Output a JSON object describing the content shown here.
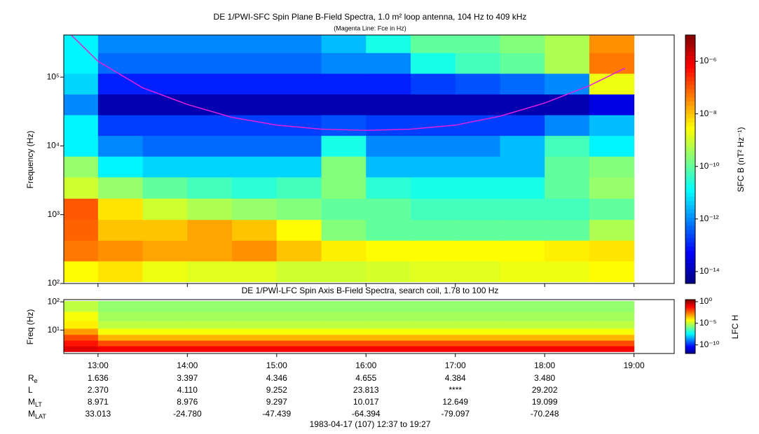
{
  "chart_data": [
    {
      "type": "heatmap",
      "title": "DE 1/PWI-SFC  Spin Plane B-Field Spectra, 1.0 m² loop antenna, 104 Hz to 409 kHz",
      "subtitle": "(Magenta Line: Fce in Hz)",
      "ylabel": "Frequency (Hz)",
      "colorbar_label": "SFC B (nT² Hz⁻¹)",
      "colormap": "jet",
      "log_y": true,
      "log_color": true,
      "xlim": [
        12.6167,
        19.45
      ],
      "ylim": [
        100,
        409000
      ],
      "yticks": [
        {
          "value": 100,
          "label": "10²"
        },
        {
          "value": 1000,
          "label": "10³"
        },
        {
          "value": 10000,
          "label": "10⁴"
        },
        {
          "value": 100000,
          "label": "10⁵"
        }
      ],
      "clim": [
        3.5e-15,
        1e-05
      ],
      "cticks": [
        {
          "value": 1e-06,
          "label": "10⁻⁶"
        },
        {
          "value": 1e-08,
          "label": "10⁻⁸"
        },
        {
          "value": 1e-10,
          "label": "10⁻¹⁰"
        },
        {
          "value": 1e-12,
          "label": "10⁻¹²"
        },
        {
          "value": 1e-14,
          "label": "10⁻¹⁴"
        }
      ],
      "x": [
        12.75,
        13.25,
        13.75,
        14.25,
        14.75,
        15.25,
        15.75,
        16.25,
        16.75,
        17.25,
        17.75,
        18.25,
        18.75,
        19.25
      ],
      "y": [
        150,
        300,
        600,
        1200,
        2500,
        5000,
        10000,
        20000,
        40000,
        80000,
        160000,
        320000
      ],
      "z": [
        [
          3e-09,
          5e-09,
          2e-09,
          1.5e-09,
          1.5e-09,
          1e-09,
          1e-09,
          1.2e-09,
          1.5e-09,
          1.5e-09,
          2e-09,
          2e-09,
          3e-09,
          null
        ],
        [
          5e-08,
          3e-08,
          2e-08,
          2e-08,
          3e-08,
          1e-08,
          4e-09,
          3e-09,
          3e-09,
          3e-09,
          3e-09,
          4e-09,
          5e-09,
          null
        ],
        [
          8e-08,
          1e-08,
          1e-08,
          2e-08,
          1e-08,
          3e-09,
          2e-10,
          1e-10,
          1e-10,
          1e-10,
          1e-10,
          1e-10,
          5e-10,
          null
        ],
        [
          1e-07,
          5e-09,
          1e-09,
          5e-10,
          3e-10,
          2e-10,
          1e-10,
          1e-10,
          5e-11,
          5e-11,
          5e-11,
          5e-11,
          1e-10,
          null
        ],
        [
          1e-09,
          3e-10,
          1e-10,
          5e-11,
          3e-11,
          5e-11,
          2e-10,
          3e-11,
          2e-11,
          2e-11,
          2e-11,
          1e-10,
          3e-10,
          null
        ],
        [
          3e-10,
          1e-11,
          5e-12,
          5e-12,
          5e-12,
          5e-12,
          2e-10,
          3e-12,
          3e-12,
          3e-12,
          3e-12,
          1e-10,
          2e-10,
          null
        ],
        [
          1e-11,
          1e-12,
          5e-13,
          5e-13,
          5e-13,
          5e-13,
          2e-11,
          1e-12,
          1e-12,
          1e-12,
          3e-12,
          5e-11,
          1e-11,
          null
        ],
        [
          1e-11,
          2e-13,
          2e-13,
          2e-13,
          2e-13,
          2e-13,
          3e-13,
          2e-13,
          2e-13,
          2e-13,
          2e-13,
          1e-12,
          3e-12,
          null
        ],
        [
          1e-12,
          1e-14,
          1e-14,
          1e-14,
          1e-14,
          1e-14,
          1e-14,
          1e-14,
          1e-14,
          1e-14,
          1e-14,
          1e-14,
          3e-14,
          null
        ],
        [
          5e-12,
          1e-13,
          1e-13,
          1e-13,
          1e-13,
          1e-13,
          1e-13,
          1e-13,
          2e-13,
          3e-13,
          5e-13,
          1e-12,
          2e-09,
          null
        ],
        [
          1e-11,
          5e-13,
          5e-13,
          5e-13,
          5e-13,
          5e-13,
          1e-12,
          1e-12,
          2e-11,
          5e-11,
          1e-10,
          5e-10,
          5e-08,
          null
        ],
        [
          1e-11,
          1e-12,
          1e-12,
          1e-12,
          1e-12,
          1e-12,
          3e-12,
          2e-11,
          1e-10,
          1e-10,
          2e-10,
          5e-10,
          3e-08,
          null
        ]
      ],
      "series": [
        {
          "name": "Fce",
          "color": "#e020e0",
          "x": [
            12.7,
            13,
            13.5,
            14,
            14.5,
            15,
            15.5,
            16,
            16.5,
            17,
            17.5,
            18,
            18.5,
            18.9
          ],
          "values": [
            409000,
            170000,
            70000,
            40000,
            26000,
            20000,
            17500,
            16800,
            17500,
            20000,
            27000,
            42000,
            75000,
            135000
          ]
        }
      ]
    },
    {
      "type": "heatmap",
      "title": "DE 1/PWI-LFC  Spin Axis B-Field Spectra, search coil, 1.78 to 100 Hz",
      "ylabel": "Freq (Hz)",
      "colorbar_label": "LFC H",
      "colormap": "jet",
      "log_y": true,
      "log_color": true,
      "xlim": [
        12.6167,
        19.45
      ],
      "xticks": [
        {
          "value": 13,
          "label": "13:00"
        },
        {
          "value": 14,
          "label": "14:00"
        },
        {
          "value": 15,
          "label": "15:00"
        },
        {
          "value": 16,
          "label": "16:00"
        },
        {
          "value": 17,
          "label": "17:00"
        },
        {
          "value": 18,
          "label": "18:00"
        },
        {
          "value": 19,
          "label": "19:00"
        }
      ],
      "ylim": [
        1.5,
        120
      ],
      "yticks": [
        {
          "value": 10,
          "label": "10¹"
        },
        {
          "value": 100,
          "label": "10²"
        }
      ],
      "clim": [
        1e-12,
        3
      ],
      "cticks": [
        {
          "value": 1,
          "label": "10⁰"
        },
        {
          "value": 1e-05,
          "label": "10⁻⁵"
        },
        {
          "value": 1e-10,
          "label": "10⁻¹⁰"
        }
      ],
      "x": [
        12.75,
        13.25,
        13.75,
        14.25,
        14.75,
        15.25,
        15.75,
        16.25,
        16.75,
        17.25,
        17.75,
        18.25,
        18.75,
        19.25
      ],
      "y": [
        2.2,
        3.5,
        5.5,
        9,
        15,
        30,
        70
      ],
      "z": [
        [
          0.2,
          0.1,
          0.1,
          0.1,
          0.1,
          0.1,
          0.1,
          0.1,
          0.1,
          0.1,
          0.1,
          0.1,
          0.1,
          null
        ],
        [
          0.05,
          0.01,
          0.01,
          0.01,
          0.01,
          0.01,
          0.01,
          0.01,
          0.01,
          0.01,
          0.01,
          0.01,
          0.01,
          null
        ],
        [
          0.01,
          0.0005,
          0.0005,
          0.0005,
          0.0005,
          0.0005,
          0.0005,
          0.0005,
          0.0005,
          0.0005,
          0.0005,
          0.0005,
          0.0005,
          null
        ],
        [
          0.001,
          5e-05,
          5e-05,
          5e-05,
          5e-05,
          5e-05,
          5e-05,
          5e-05,
          5e-05,
          5e-05,
          5e-05,
          5e-05,
          5e-05,
          null
        ],
        [
          0.0001,
          1e-05,
          1e-05,
          1e-05,
          1e-05,
          1e-05,
          1e-05,
          1e-05,
          1e-05,
          1e-05,
          1e-05,
          1e-05,
          1e-05,
          null
        ],
        [
          5e-05,
          5e-06,
          5e-06,
          5e-06,
          5e-06,
          5e-06,
          5e-06,
          5e-06,
          5e-06,
          5e-06,
          5e-06,
          5e-06,
          5e-06,
          null
        ],
        [
          1e-05,
          3e-06,
          3e-06,
          3e-06,
          3e-06,
          3e-06,
          3e-06,
          3e-06,
          3e-06,
          3e-06,
          3e-06,
          3e-06,
          3e-06,
          null
        ]
      ]
    }
  ],
  "ephemeris": [
    {
      "label": "R",
      "sub": "e",
      "values": [
        "1.636",
        "3.397",
        "4.346",
        "4.655",
        "4.384",
        "3.480"
      ]
    },
    {
      "label": "L",
      "values": [
        "2.370",
        "4.110",
        "9.252",
        "23.813",
        "****",
        "29.202"
      ]
    },
    {
      "label": "M",
      "sub": "LT",
      "values": [
        "8.971",
        "8.976",
        "9.297",
        "10.017",
        "12.649",
        "19.099"
      ]
    },
    {
      "label": "M",
      "sub": "LAT",
      "values": [
        "33.013",
        "-24.780",
        "-47.439",
        "-64.394",
        "-79.097",
        "-70.248"
      ]
    }
  ],
  "footer": "1983-04-17 (107) 12:37 to 19:27"
}
